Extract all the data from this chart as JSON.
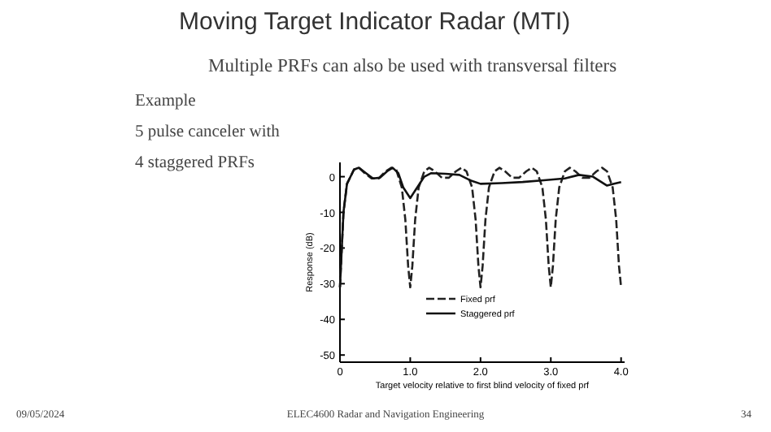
{
  "chart_data": {
    "type": "line",
    "title": "Moving Target Indicator Radar (MTI)",
    "annotations": [
      "Multiple PRFs can also be used with transversal filters",
      "Example",
      "5 pulse canceler with",
      "4 staggered PRFs",
      "09/05/2024",
      "ELEC4600 Radar and Navigation Engineering",
      "34"
    ],
    "xlabel": "Target velocity relative to first blind velocity of fixed prf",
    "ylabel": "Response (dB)",
    "xlim": [
      0,
      4.05
    ],
    "ylim": [
      -52,
      4
    ],
    "xticks": [
      0,
      {
        "value": 1,
        "label": "1.0"
      },
      {
        "value": 2,
        "label": "2.0"
      },
      {
        "value": 3,
        "label": "3.0"
      },
      {
        "value": 4,
        "label": "4.0"
      }
    ],
    "yticks": [
      0,
      -10,
      -20,
      -30,
      -40,
      -50
    ],
    "legend": "bottom",
    "grid": false,
    "marker": "none",
    "series": [
      {
        "name": "Fixed prf",
        "color": "#222222",
        "line_style": "dashed",
        "x": [
          0,
          0.05,
          0.1,
          0.2,
          0.27,
          0.35,
          0.45,
          0.55,
          0.65,
          0.73,
          0.8,
          0.88,
          0.93,
          0.97,
          1.0,
          1.03,
          1.07,
          1.12,
          1.2,
          1.27,
          1.35,
          1.45,
          1.55,
          1.65,
          1.73,
          1.8,
          1.88,
          1.93,
          1.97,
          2.0,
          2.03,
          2.07,
          2.12,
          2.2,
          2.27,
          2.35,
          2.45,
          2.55,
          2.65,
          2.73,
          2.8,
          2.88,
          2.93,
          2.97,
          3.0,
          3.03,
          3.07,
          3.12,
          3.2,
          3.27,
          3.35,
          3.45,
          3.55,
          3.65,
          3.73,
          3.8,
          3.88,
          3.93,
          3.97,
          4.0
        ],
        "values": [
          -31,
          -10,
          -2,
          2,
          2.5,
          1,
          -0.5,
          -0.5,
          1.5,
          2.5,
          2,
          -3,
          -12,
          -25,
          -31,
          -25,
          -12,
          -3,
          1.5,
          2.5,
          1.5,
          -0.3,
          -0.3,
          1.5,
          2.5,
          1.5,
          -3,
          -12,
          -25,
          -31,
          -25,
          -12,
          -3,
          1.5,
          2.5,
          1.5,
          -0.3,
          -0.3,
          1.5,
          2.5,
          1.5,
          -3,
          -12,
          -25,
          -31,
          -25,
          -12,
          -3,
          1.5,
          2.5,
          1.5,
          -0.3,
          -0.3,
          1.5,
          2.5,
          1.5,
          -3,
          -12,
          -25,
          -31
        ]
      },
      {
        "name": "Staggered prf",
        "color": "#111111",
        "line_style": "solid",
        "x": [
          0,
          0.05,
          0.1,
          0.2,
          0.27,
          0.37,
          0.47,
          0.57,
          0.67,
          0.75,
          0.83,
          0.9,
          1.0,
          1.1,
          1.2,
          1.3,
          1.5,
          1.7,
          1.85,
          2.0,
          2.3,
          2.6,
          2.9,
          3.2,
          3.4,
          3.6,
          3.8,
          3.9,
          4.0
        ],
        "values": [
          -31,
          -10,
          -2,
          2,
          2.5,
          1,
          -0.5,
          -0.3,
          1.5,
          2.5,
          1,
          -3,
          -6,
          -3,
          0,
          1,
          0.8,
          0.5,
          -1,
          -2,
          -1.8,
          -1.5,
          -1,
          -0.5,
          0.5,
          0,
          -2.5,
          -2,
          -1.5
        ]
      }
    ]
  }
}
